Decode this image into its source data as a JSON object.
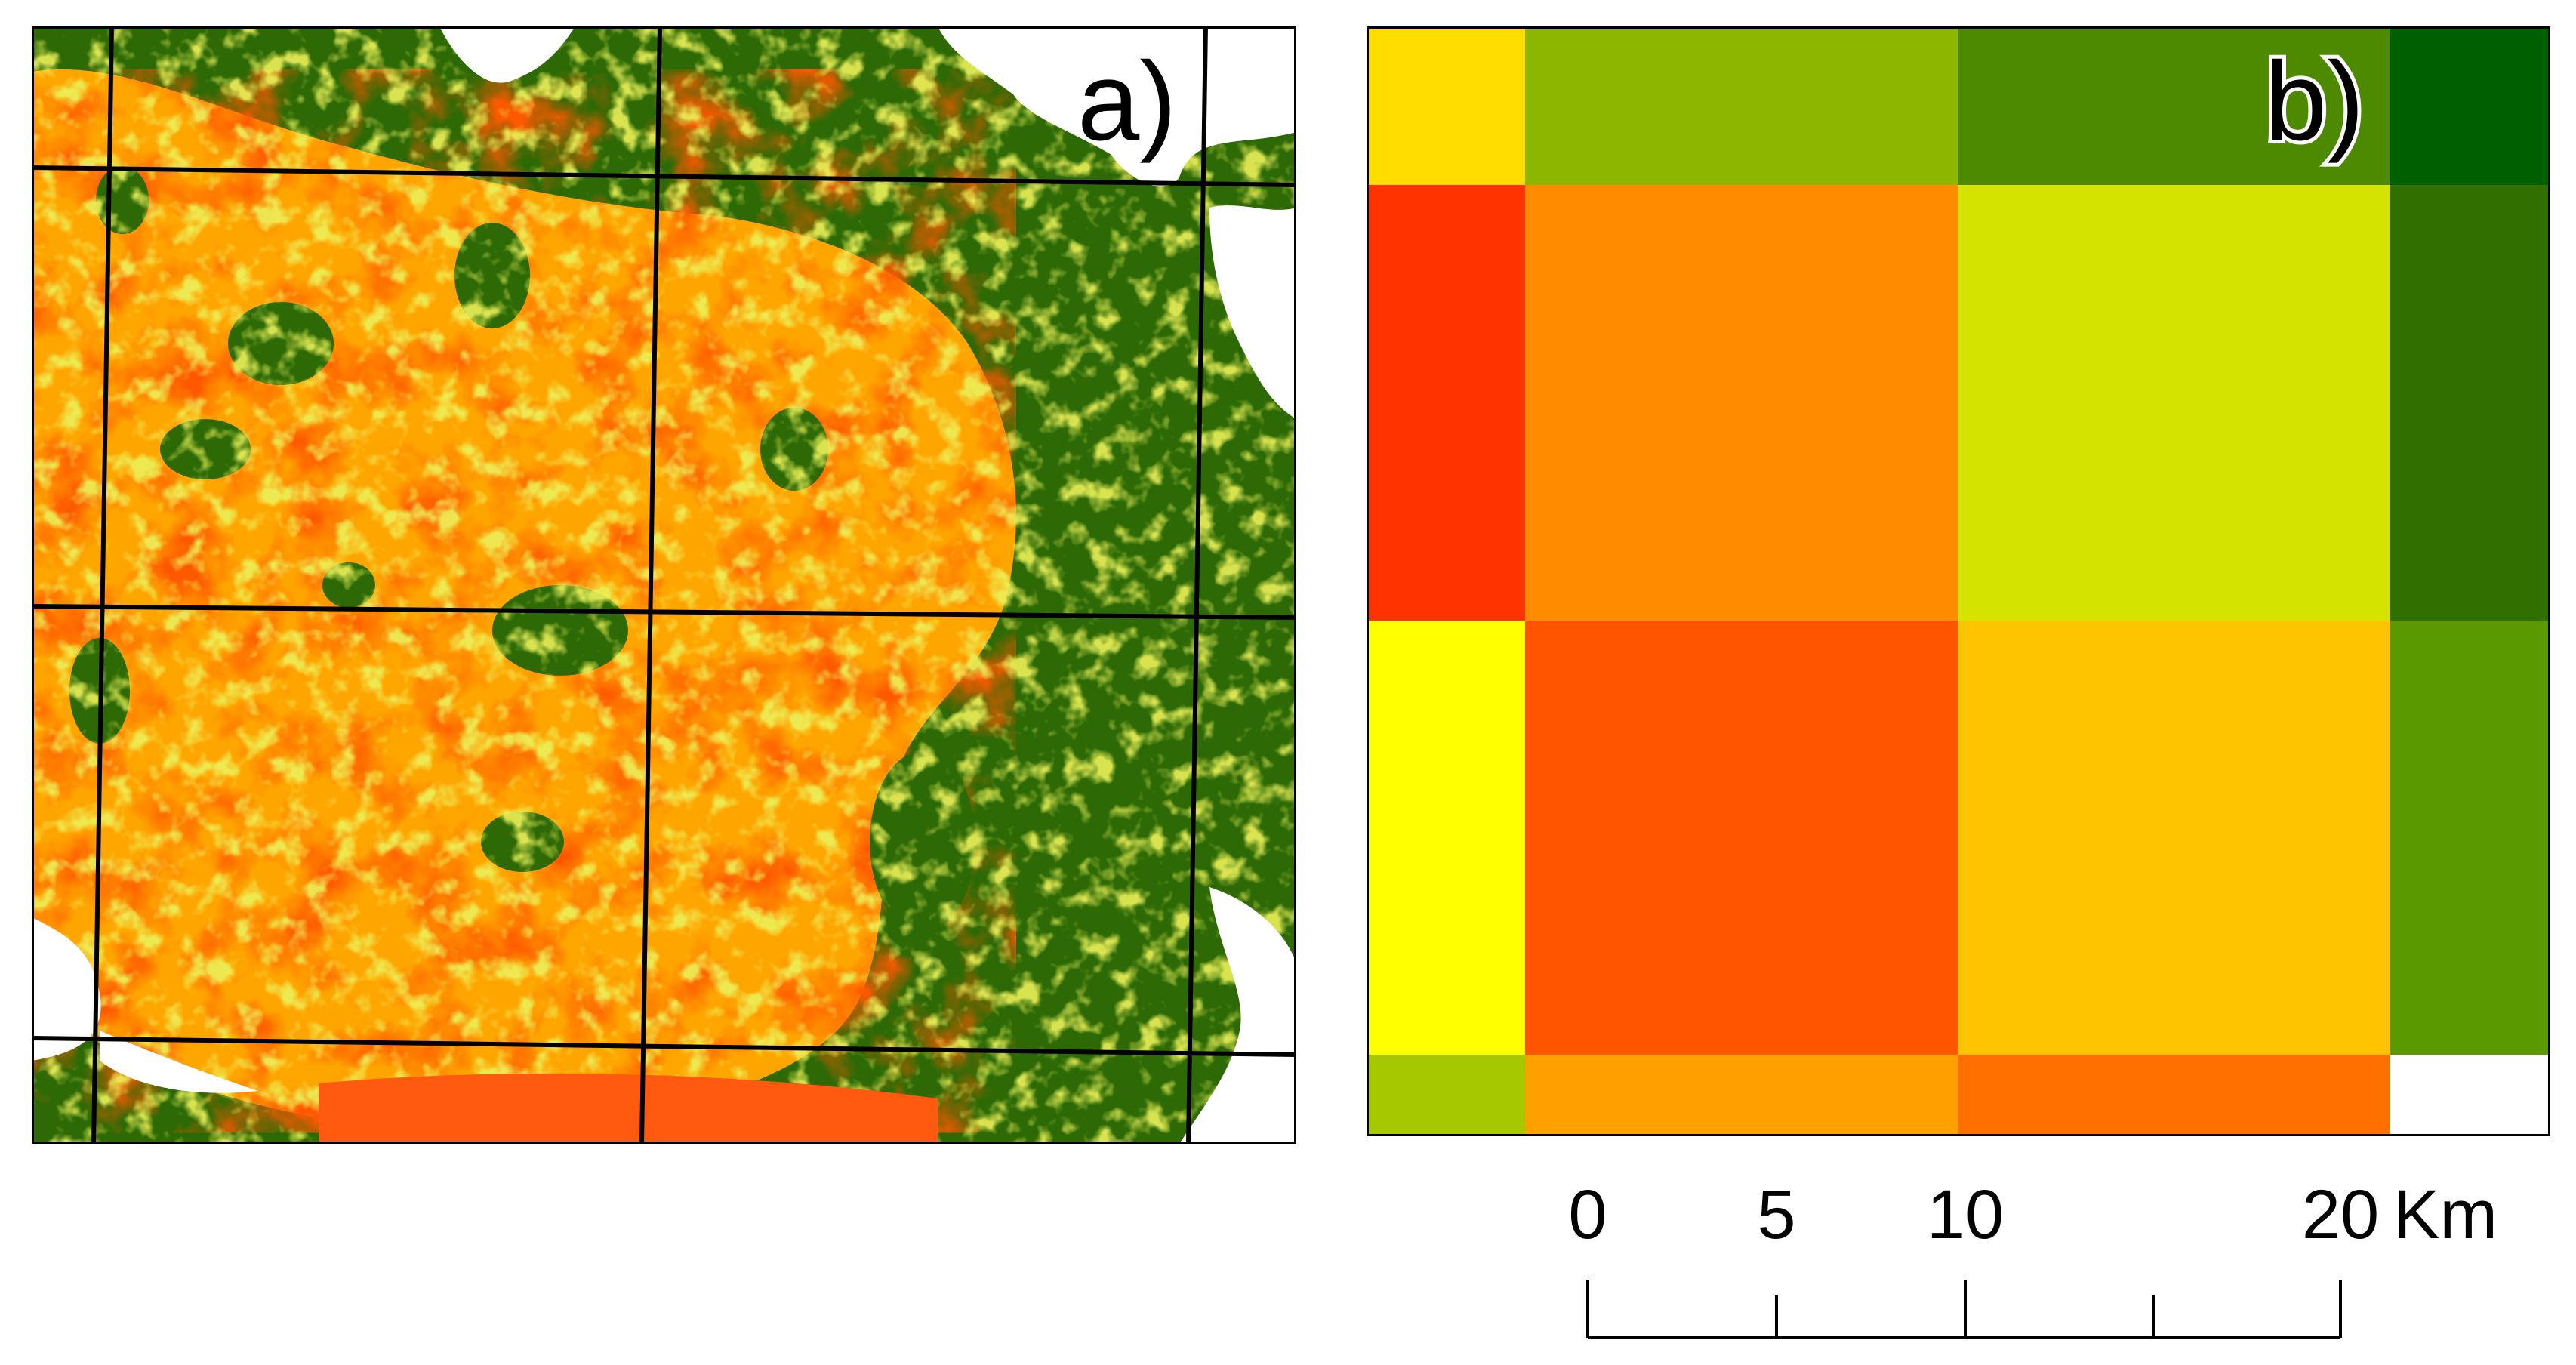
{
  "panels": {
    "a": {
      "label": "a)"
    },
    "b": {
      "label": "b)",
      "grid_colors": [
        [
          "#ffdd00",
          "#8db600",
          "#8db600",
          "#4d8a00",
          "#006000"
        ],
        [
          "#ff3300",
          "#ff8c00",
          "#ff8c00",
          "#d4e400",
          "#2f7000"
        ],
        [
          "#ffff00",
          "#ff5500",
          "#ff5500",
          "#ffc400",
          "#5a9a00"
        ],
        [
          "#a6c800",
          "#ffa000",
          "#ffa000",
          "#ff7000",
          "#ffffff"
        ]
      ]
    }
  },
  "scale_bar": {
    "ticks": [
      "0",
      "5",
      "10",
      "20"
    ],
    "unit": "Km"
  },
  "colors": {
    "high": "#ff1a00",
    "medium_high": "#ffa500",
    "medium": "#d6e01c",
    "low": "#2d6a05",
    "nodata": "#ffffff",
    "grid_line": "#000000"
  }
}
